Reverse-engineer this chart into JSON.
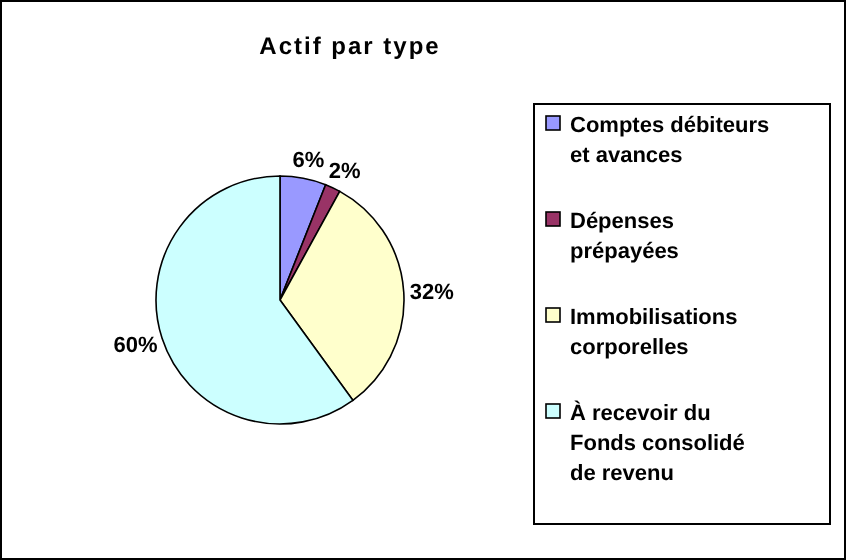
{
  "chart_data": {
    "type": "pie",
    "title": "Actif par type",
    "categories": [
      "Comptes débiteurs et avances",
      "Dépenses prépayées",
      "Immobilisations corporelles",
      "À recevoir du Fonds consolidé de revenu"
    ],
    "values": [
      6,
      2,
      32,
      60
    ],
    "colors": [
      "#9999ff",
      "#993366",
      "#ffffcc",
      "#ccffff"
    ],
    "value_labels": [
      "6%",
      "2%",
      "32%",
      "60%"
    ],
    "legend": "right"
  }
}
